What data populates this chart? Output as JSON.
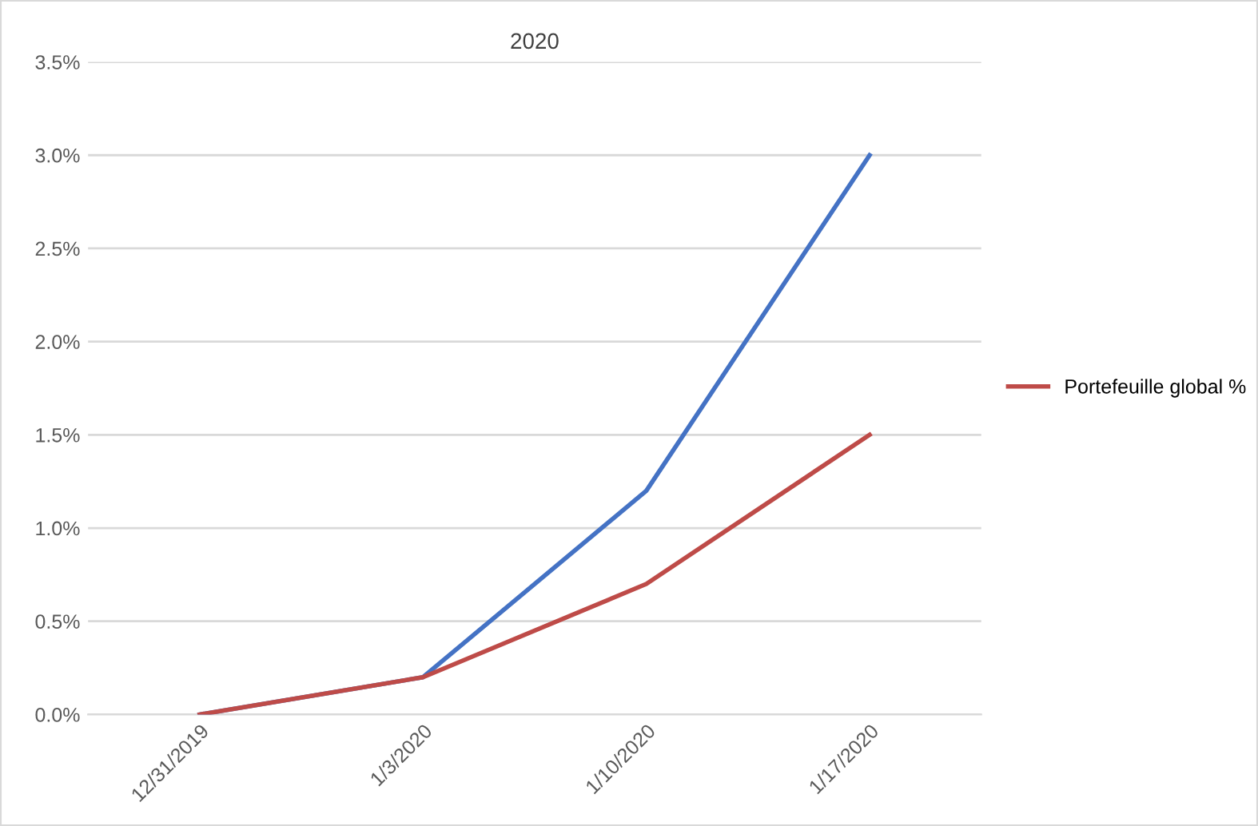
{
  "chart_data": {
    "type": "line",
    "title": "2020",
    "categories": [
      "12/31/2019",
      "1/3/2020",
      "1/10/2020",
      "1/17/2020"
    ],
    "series": [
      {
        "color": "#4472c4",
        "values": [
          0,
          0.2,
          1.2,
          3.0
        ]
      },
      {
        "name": "Portefeuille global %",
        "color": "#be4b48",
        "values": [
          0,
          0.2,
          0.7,
          1.5
        ]
      }
    ],
    "ylim": [
      0,
      3.5
    ],
    "yticks": [
      {
        "value": 0,
        "label": "0.0%"
      },
      {
        "value": 0.5,
        "label": "0.5%"
      },
      {
        "value": 1,
        "label": "1.0%"
      },
      {
        "value": 1.5,
        "label": "1.5%"
      },
      {
        "value": 2,
        "label": "2.0%"
      },
      {
        "value": 2.5,
        "label": "2.5%"
      },
      {
        "value": 3,
        "label": "3.0%"
      },
      {
        "value": 3.5,
        "label": "3.5%"
      }
    ],
    "grid": "y",
    "legend": "right",
    "marker": "none",
    "line_style": "solid"
  }
}
